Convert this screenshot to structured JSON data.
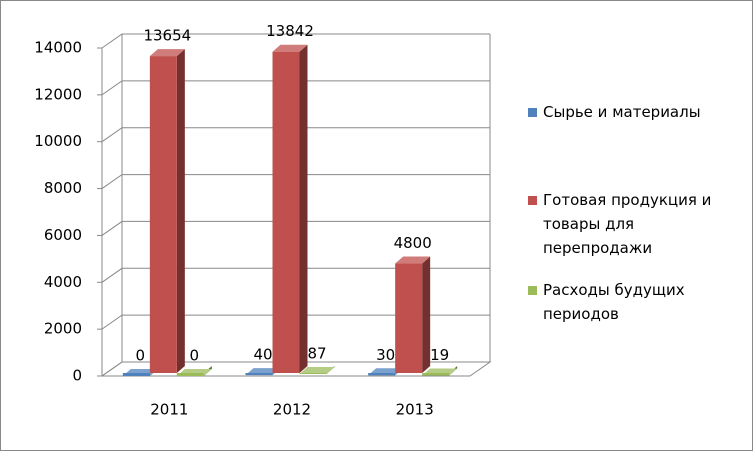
{
  "chart_data": {
    "type": "bar3d",
    "categories": [
      "2011",
      "2012",
      "2013"
    ],
    "series": [
      {
        "name": "Сырье и материалы",
        "color": "#4f81bd",
        "values": [
          0,
          40,
          30
        ]
      },
      {
        "name": "Готовая продукция и товары для перепродажи",
        "color": "#c0504d",
        "values": [
          13654,
          13842,
          4800
        ]
      },
      {
        "name": "Расходы будущих периодов",
        "color": "#9bbb59",
        "values": [
          0,
          87,
          19
        ]
      }
    ],
    "ylim": [
      0,
      14000
    ],
    "yticks": [
      0,
      2000,
      4000,
      6000,
      8000,
      10000,
      12000,
      14000
    ],
    "grid": true,
    "legend": "right"
  }
}
